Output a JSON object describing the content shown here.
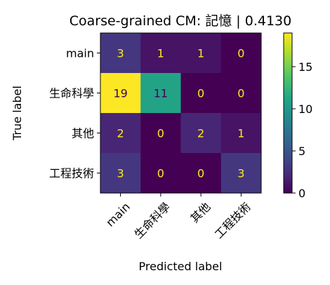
{
  "chart_data": {
    "type": "heatmap",
    "title": "Coarse-grained CM: 記憶 | 0.4130",
    "xlabel": "Predicted label",
    "ylabel": "True label",
    "row_labels": [
      "main",
      "生命科學",
      "其他",
      "工程技術"
    ],
    "col_labels": [
      "main",
      "生命科學",
      "其他",
      "工程技術"
    ],
    "values": [
      [
        3,
        1,
        1,
        0
      ],
      [
        19,
        11,
        0,
        0
      ],
      [
        2,
        0,
        2,
        1
      ],
      [
        3,
        0,
        0,
        3
      ]
    ],
    "colorbar": {
      "min": 0,
      "max": 19,
      "ticks": [
        0,
        5,
        10,
        15
      ]
    },
    "colormap": "viridis",
    "grid": false
  }
}
